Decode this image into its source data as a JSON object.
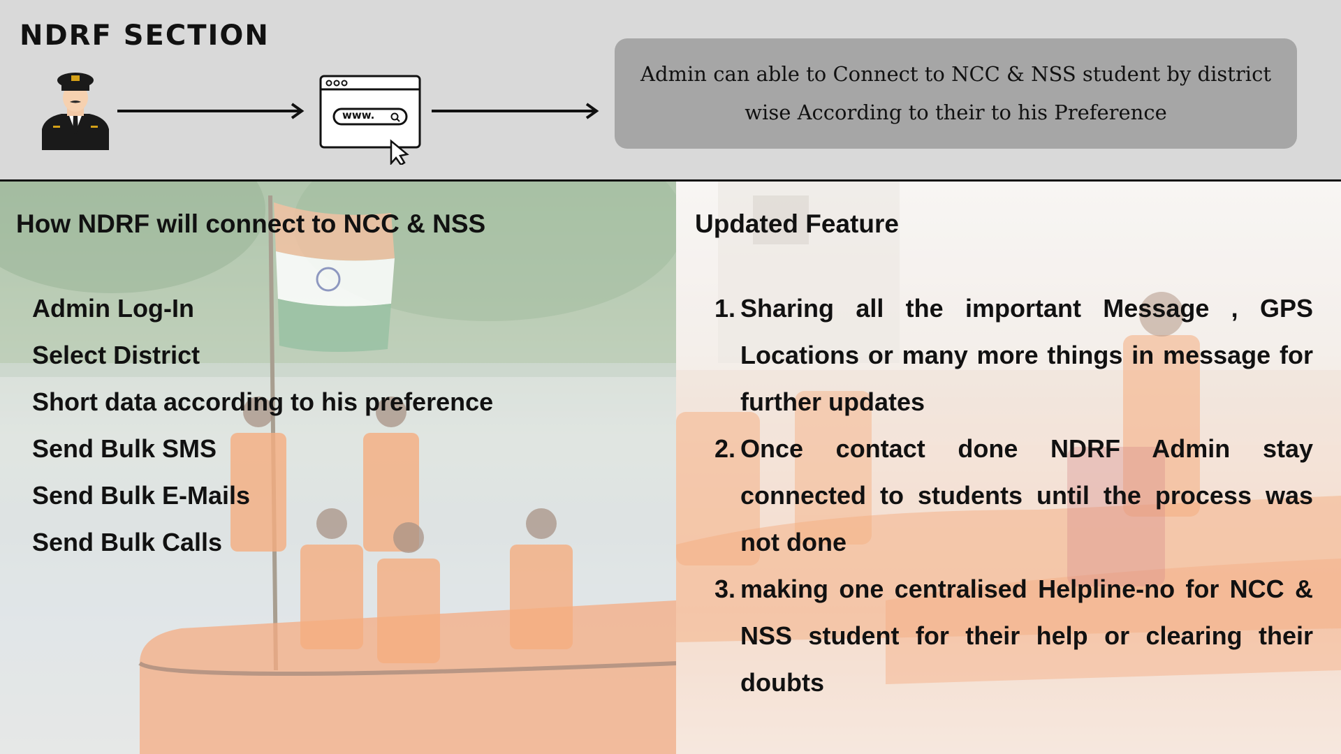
{
  "header": {
    "section_title": "NDRF SECTION",
    "description": "Admin can able to Connect to NCC & NSS student by district wise According to their to his Preference",
    "browser_url_text": "www.",
    "icons": [
      "officer-icon",
      "arrow-right-icon",
      "browser-window-icon",
      "cursor-icon",
      "arrow-right-icon"
    ]
  },
  "left_panel": {
    "heading": "How NDRF will connect to NCC & NSS",
    "steps": [
      "Admin Log-In",
      "Select District",
      "Short data according to his preference",
      "Send Bulk SMS",
      "Send Bulk E-Mails",
      "Send Bulk Calls"
    ]
  },
  "right_panel": {
    "heading": "Updated Feature",
    "features": [
      {
        "num": "1.",
        "text": "Sharing  all the important Message , GPS Locations or many more things in message for further updates"
      },
      {
        "num": "2.",
        "text": "Once contact done NDRF Admin stay connected to students until the process was not done"
      },
      {
        "num": "3.",
        "text": "making one centralised Helpline-no for NCC & NSS student for their help or clearing their doubts"
      }
    ]
  },
  "colors": {
    "header_bg": "#d9d9d9",
    "desc_box_bg": "#a6a6a6",
    "text": "#111111",
    "rescue_orange": "#f0823c"
  }
}
